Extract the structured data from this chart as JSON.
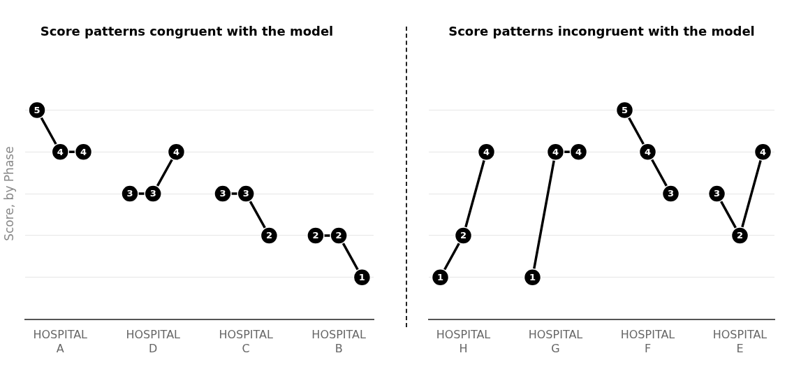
{
  "chart_data": [
    {
      "type": "line",
      "title": "Score patterns congruent with the model",
      "ylabel": "Score, by Phase",
      "categories": [
        null,
        "HOSPITAL A",
        null,
        null,
        null,
        "HOSPITAL D",
        null,
        null,
        null,
        "HOSPITAL C",
        null,
        null,
        null,
        "HOSPITAL B",
        null
      ],
      "series": [
        {
          "color": "#000000",
          "values": [
            5,
            4,
            4,
            null,
            null,
            null,
            null,
            null,
            null,
            null,
            null,
            null,
            null,
            null,
            null
          ]
        },
        {
          "color": "#000000",
          "values": [
            null,
            null,
            null,
            null,
            3,
            3,
            4,
            null,
            null,
            null,
            null,
            null,
            null,
            null,
            null
          ]
        },
        {
          "color": "#000000",
          "values": [
            null,
            null,
            null,
            null,
            null,
            null,
            null,
            null,
            3,
            3,
            2,
            null,
            null,
            null,
            null
          ]
        },
        {
          "color": "#000000",
          "values": [
            null,
            null,
            null,
            null,
            null,
            null,
            null,
            null,
            null,
            null,
            null,
            null,
            2,
            2,
            1
          ]
        }
      ],
      "yticks": [
        {
          "value": 0,
          "label": null
        },
        {
          "value": 1,
          "label": null
        },
        {
          "value": 2,
          "label": null
        },
        {
          "value": 3,
          "label": null
        },
        {
          "value": 4,
          "label": null
        },
        {
          "value": 5,
          "label": null
        }
      ],
      "grid": "y",
      "tick_labels": "x",
      "marker": "circle",
      "line_style": "solid",
      "data_labels": true
    },
    {
      "type": "line",
      "title": "Score patterns incongruent with the model",
      "categories": [
        null,
        "HOSPITAL H",
        null,
        null,
        null,
        "HOSPITAL G",
        null,
        null,
        null,
        "HOSPITAL F",
        null,
        null,
        null,
        "HOSPITAL E",
        null
      ],
      "series": [
        {
          "color": "#000000",
          "values": [
            1,
            2,
            4,
            null,
            null,
            null,
            null,
            null,
            null,
            null,
            null,
            null,
            null,
            null,
            null
          ]
        },
        {
          "color": "#000000",
          "values": [
            null,
            null,
            null,
            null,
            1,
            4,
            4,
            null,
            null,
            null,
            null,
            null,
            null,
            null,
            null
          ]
        },
        {
          "color": "#000000",
          "values": [
            null,
            null,
            null,
            null,
            null,
            null,
            null,
            null,
            5,
            4,
            3,
            null,
            null,
            null,
            null
          ]
        },
        {
          "color": "#000000",
          "values": [
            null,
            null,
            null,
            null,
            null,
            null,
            null,
            null,
            null,
            null,
            null,
            null,
            3,
            2,
            4
          ]
        }
      ],
      "yticks": [
        {
          "value": 0,
          "label": null
        },
        {
          "value": 1,
          "label": null
        },
        {
          "value": 2,
          "label": null
        },
        {
          "value": 3,
          "label": null
        },
        {
          "value": 4,
          "label": null
        },
        {
          "value": 5,
          "label": null
        }
      ],
      "grid": "y",
      "tick_labels": "x",
      "marker": "circle",
      "line_style": "solid",
      "data_labels": true
    }
  ]
}
